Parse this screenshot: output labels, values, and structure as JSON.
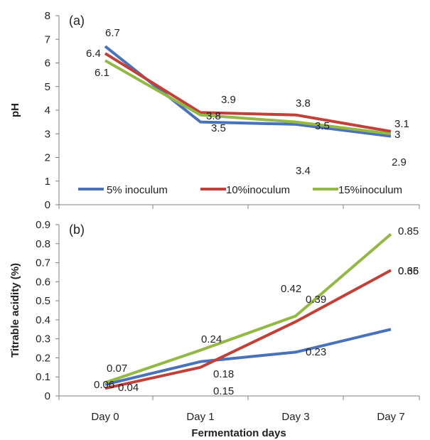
{
  "colors": {
    "series": [
      "#4a72b8",
      "#c0403a",
      "#93b845"
    ],
    "axis": "#808080",
    "text": "#222222"
  },
  "chart_data": [
    {
      "type": "line",
      "panel_label": "(a)",
      "title": "",
      "xlabel": "",
      "ylabel": "pH",
      "categories": [
        "",
        "",
        "",
        ""
      ],
      "ylim": [
        0,
        8
      ],
      "yticks": [
        "0",
        "1",
        "2",
        "3",
        "4",
        "5",
        "6",
        "7",
        "8"
      ],
      "grid": false,
      "legend": "bottom",
      "series": [
        {
          "name": "5% inoculum",
          "values": [
            6.7,
            3.5,
            3.4,
            2.9
          ],
          "labels": [
            "6.7",
            "3.5",
            "3.4",
            "2.9"
          ]
        },
        {
          "name": "10%inoculum",
          "values": [
            6.4,
            3.9,
            3.8,
            3.1
          ],
          "labels": [
            "6.4",
            "3.9",
            "3.8",
            "3.1"
          ]
        },
        {
          "name": "15%inoculum",
          "values": [
            6.1,
            3.8,
            3.5,
            3.0
          ],
          "labels": [
            "6.1",
            "3.8",
            "3.5",
            "3"
          ]
        }
      ]
    },
    {
      "type": "line",
      "panel_label": "(b)",
      "title": "",
      "xlabel": "Fermentation days",
      "ylabel": "Titrable acidity (%)",
      "categories": [
        "Day 0",
        "Day 1",
        "Day 3",
        "Day 7"
      ],
      "ylim": [
        0,
        0.9
      ],
      "yticks": [
        "0",
        "0.1",
        "0.2",
        "0.3",
        "0.4",
        "0.5",
        "0.6",
        "0.7",
        "0.8",
        "0.9"
      ],
      "grid": false,
      "legend": "none",
      "series": [
        {
          "values": [
            0.06,
            0.18,
            0.23,
            0.35
          ],
          "labels": [
            "0.06",
            "0.18",
            "0.23",
            "0.35"
          ]
        },
        {
          "values": [
            0.04,
            0.15,
            0.39,
            0.66
          ],
          "labels": [
            "0.04",
            "0.15",
            "0.39",
            "0.66"
          ]
        },
        {
          "values": [
            0.07,
            0.24,
            0.42,
            0.85
          ],
          "labels": [
            "0.07",
            "0.24",
            "0.42",
            "0.85"
          ]
        }
      ]
    }
  ]
}
